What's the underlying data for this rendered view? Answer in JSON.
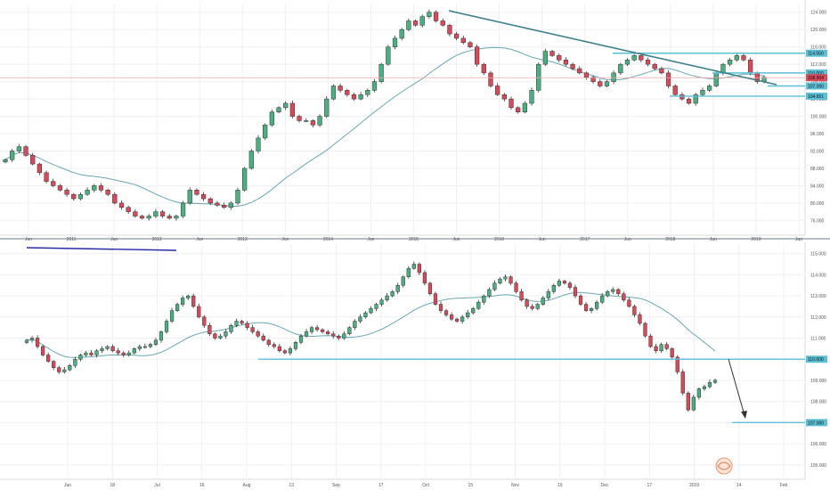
{
  "colors": {
    "up": "#4caf82",
    "down": "#d84a5a",
    "ma": "#6aa7b0",
    "level": "#5bc0d6",
    "trend": "#3f7f8c",
    "blue_line": "#2a2aa8",
    "current": "#f2a6ad"
  },
  "chart_data": [
    {
      "type": "candlestick",
      "timeframe": "weekly",
      "yticks": [
        "124.000",
        "120.000",
        "116.000",
        "112.000",
        "108.000",
        "104.000",
        "100.000",
        "96.000",
        "92.000",
        "88.000",
        "84.000",
        "80.000",
        "76.000"
      ],
      "ylim": [
        73.0,
        126.0
      ],
      "xlabels": [
        "Jun",
        "2011",
        "Jun",
        "2012",
        "Jun",
        "2013",
        "Jun",
        "2014",
        "Jun",
        "2015",
        "Jun",
        "2016",
        "Jun",
        "2017",
        "Jun",
        "2018",
        "Jun",
        "2019",
        "Jun"
      ],
      "levels": [
        {
          "label": "114.550",
          "value": 114.55
        },
        {
          "label": "110.000",
          "value": 110.0
        },
        {
          "label": "107.000",
          "value": 107.0
        },
        {
          "label": "104.651",
          "value": 104.651
        }
      ],
      "current_price": {
        "label": "108.904",
        "value": 108.904
      },
      "closes": [
        90,
        92,
        93,
        91,
        89,
        87,
        85,
        84,
        83,
        82,
        81,
        82,
        83,
        84,
        83,
        82,
        80,
        79,
        78,
        77,
        76.5,
        77,
        78,
        77,
        76.5,
        77,
        80,
        83,
        82,
        81,
        80,
        79.5,
        79,
        80,
        83,
        88,
        92,
        95,
        98,
        101,
        102,
        103,
        100,
        99,
        99,
        98,
        100,
        104,
        107,
        106,
        105,
        104,
        105,
        106,
        108,
        112,
        116,
        118,
        120,
        122,
        121,
        123,
        124,
        122,
        121,
        119,
        118,
        117,
        116,
        112,
        110,
        107,
        105,
        104,
        102,
        101,
        103,
        106,
        112,
        115,
        114,
        113,
        112,
        111,
        110,
        109,
        108,
        107,
        108,
        110,
        112,
        113,
        114,
        113,
        112,
        111,
        110,
        107,
        105,
        104,
        103,
        105,
        106,
        107,
        110,
        112,
        113,
        114,
        113,
        110,
        108,
        109
      ]
    },
    {
      "type": "candlestick",
      "timeframe": "daily",
      "yticks": [
        "115.000",
        "114.000",
        "113.000",
        "112.000",
        "111.000",
        "110.000",
        "109.000",
        "108.000",
        "107.000",
        "106.000",
        "105.000"
      ],
      "ylim": [
        104.4,
        115.45
      ],
      "xlabels": [
        "Jun",
        "18",
        "Jul",
        "16",
        "Aug",
        "13",
        "Sep",
        "17",
        "Oct",
        "15",
        "Nov",
        "19",
        "Dec",
        "17",
        "2019",
        "14",
        "Feb"
      ],
      "levels": [
        {
          "label": "110.000",
          "value": 110.0
        },
        {
          "label": "107.000",
          "value": 107.0
        }
      ],
      "closes": [
        110.9,
        111.0,
        110.6,
        110.2,
        109.9,
        109.6,
        109.4,
        109.5,
        109.7,
        110.0,
        110.2,
        110.3,
        110.2,
        110.4,
        110.5,
        110.6,
        110.4,
        110.3,
        110.2,
        110.3,
        110.5,
        110.6,
        110.6,
        110.7,
        110.9,
        111.3,
        111.8,
        112.3,
        112.6,
        112.9,
        113.0,
        112.5,
        112.0,
        111.6,
        111.2,
        111.0,
        111.1,
        111.3,
        111.6,
        111.8,
        111.7,
        111.5,
        111.3,
        111.1,
        110.9,
        110.7,
        110.6,
        110.4,
        110.3,
        110.5,
        110.8,
        111.1,
        111.3,
        111.5,
        111.4,
        111.3,
        111.2,
        111.1,
        111.0,
        111.2,
        111.5,
        111.8,
        112.0,
        112.2,
        112.4,
        112.6,
        112.8,
        113.0,
        113.2,
        113.5,
        113.9,
        114.3,
        114.5,
        114.1,
        113.6,
        113.1,
        112.6,
        112.3,
        112.1,
        111.9,
        111.8,
        112.0,
        112.2,
        112.4,
        112.7,
        113.0,
        113.3,
        113.6,
        113.8,
        113.9,
        113.6,
        113.2,
        112.8,
        112.5,
        112.4,
        112.6,
        112.9,
        113.2,
        113.5,
        113.7,
        113.6,
        113.4,
        113.0,
        112.6,
        112.3,
        112.4,
        112.7,
        113.0,
        113.2,
        113.3,
        113.1,
        112.8,
        112.5,
        112.1,
        111.7,
        111.1,
        110.6,
        110.4,
        110.7,
        110.5,
        110.1,
        109.4,
        108.4,
        107.6,
        108.2,
        108.6,
        108.7,
        108.9,
        109.0
      ]
    }
  ]
}
